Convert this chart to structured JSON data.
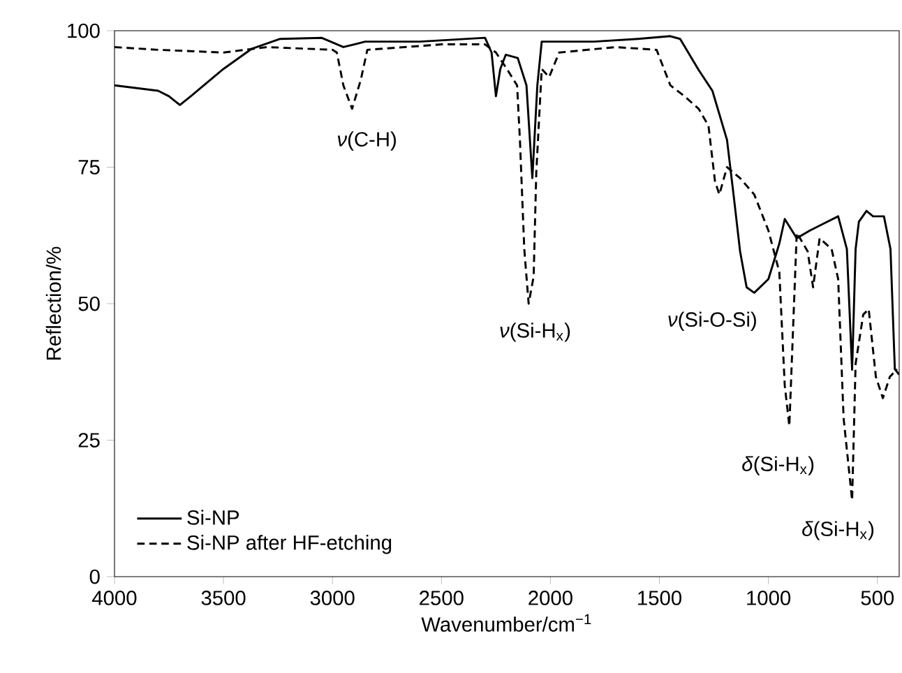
{
  "chart_data": {
    "type": "line",
    "xlabel": "Wavenumber/cm$^{−1}$",
    "ylabel": "Reflection/%",
    "xlim": [
      4000,
      400
    ],
    "ylim": [
      0,
      100
    ],
    "xticks": [
      4000,
      3500,
      3000,
      2500,
      2000,
      1500,
      1000,
      500
    ],
    "yticks": [
      0,
      25,
      50,
      75,
      100
    ],
    "legend": "bottom left",
    "grid": false,
    "marker": "none",
    "series": [
      {
        "name": "Si-NP",
        "color": "#000000",
        "line_style": "solid",
        "x": [
          4000,
          3900,
          3800,
          3750,
          3700,
          3650,
          3500,
          3370,
          3240,
          3050,
          2950,
          2850,
          2600,
          2300,
          2270,
          2250,
          2230,
          2205,
          2150,
          2110,
          2083,
          2060,
          2040,
          1800,
          1600,
          1450,
          1405,
          1320,
          1257,
          1190,
          1160,
          1130,
          1100,
          1065,
          1000,
          950,
          925,
          870,
          810,
          745,
          680,
          640,
          616,
          600,
          585,
          550,
          520,
          470,
          440,
          420,
          400
        ],
        "values": [
          90,
          89.5,
          89,
          88,
          86.4,
          88,
          93,
          96.7,
          98.5,
          98.7,
          97,
          98,
          98,
          98.7,
          96,
          88,
          93,
          95.6,
          95,
          90,
          73,
          90,
          98,
          98,
          98.5,
          99,
          98.5,
          92.8,
          89,
          80,
          70,
          59.6,
          53,
          52,
          54.5,
          61,
          65.5,
          62,
          63.4,
          64.7,
          66,
          60,
          37.9,
          60,
          65,
          67,
          66,
          66,
          60,
          38,
          37
        ]
      },
      {
        "name": "Si-NP after HF-etching",
        "color": "#000000",
        "line_style": "dashed",
        "x": [
          4000,
          3800,
          3500,
          3300,
          3000,
          2980,
          2950,
          2910,
          2870,
          2840,
          2500,
          2300,
          2250,
          2200,
          2153,
          2140,
          2120,
          2100,
          2077,
          2065,
          2040,
          2006,
          1960,
          1700,
          1513,
          1450,
          1385,
          1320,
          1275,
          1245,
          1225,
          1190,
          1130,
          1065,
          1000,
          950,
          925,
          904,
          870,
          820,
          795,
          765,
          710,
          680,
          655,
          616,
          600,
          565,
          540,
          507,
          475,
          443,
          410
        ],
        "values": [
          97,
          96.5,
          96,
          97,
          96.5,
          96,
          90,
          85.7,
          91,
          96.5,
          97.5,
          97.5,
          96,
          93,
          90,
          80,
          60,
          50,
          55,
          74,
          93,
          91.5,
          96,
          97,
          96.5,
          90,
          88,
          85.7,
          82.6,
          72.4,
          70,
          75,
          73,
          70,
          63.4,
          55.8,
          35,
          27.6,
          63,
          59.6,
          53,
          62,
          60,
          54.5,
          29,
          14,
          39,
          48,
          49,
          36.6,
          32.7,
          36.6,
          38
        ]
      }
    ],
    "annotations": [
      {
        "text": "*ν*(C-H)",
        "x": 2910,
        "y": 85.7
      },
      {
        "text": "*ν*(Si-H$_{x}$)",
        "x": 2100,
        "y": 50
      },
      {
        "text": "*ν*(Si-O-Si)",
        "x": 1065,
        "y": 52
      },
      {
        "text": "*δ*(Si-H$_{x}$)",
        "x": 904,
        "y": 27.6
      },
      {
        "text": "*δ*(Si-H$_{x}$)",
        "x": 616,
        "y": 14
      }
    ]
  }
}
